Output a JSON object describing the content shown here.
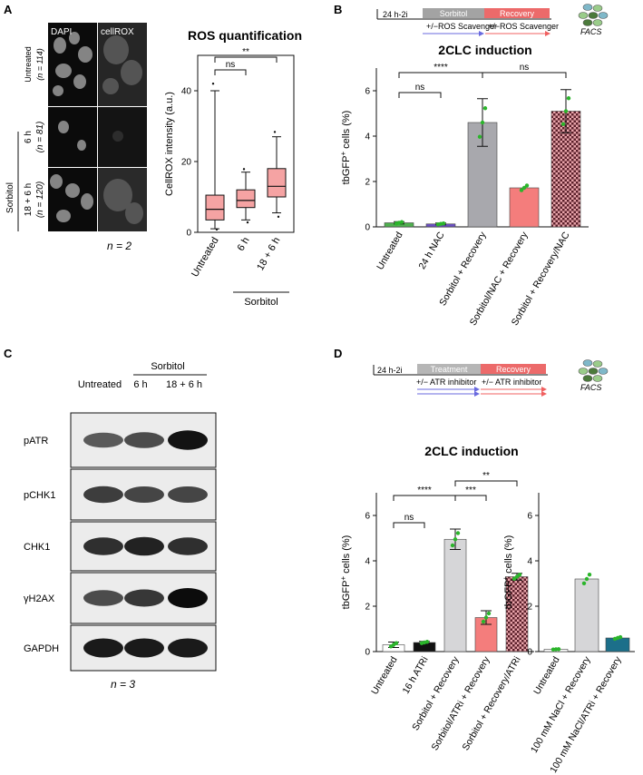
{
  "panel_labels": {
    "a": "A",
    "b": "B",
    "c": "C",
    "d": "D"
  },
  "panelA": {
    "stain1": "DAPI",
    "stain2": "cellROX",
    "row_untreated": "Untreated",
    "row_untreated_n": "(n = 114)",
    "sorbitol_label": "Sorbitol",
    "row_6h": "6 h",
    "row_6h_n": "(n = 81)",
    "row_18h": "18 + 6 h",
    "row_18h_n": "(n = 120)",
    "n_note": "n = 2",
    "chart_data": {
      "type": "box",
      "title": "ROS quantification",
      "ylabel": "CellROX intensity (a.u.)",
      "ylim": [
        0,
        50
      ],
      "yticks": [
        "0",
        "20",
        "40"
      ],
      "categories": [
        "Untreated",
        "6 h",
        "18 + 6 h"
      ],
      "group_label": "Sorbitol",
      "boxes": [
        {
          "min": 1,
          "q1": 3.5,
          "median": 6.5,
          "q3": 10.5,
          "max": 40
        },
        {
          "min": 3.5,
          "q1": 7,
          "median": 9,
          "q3": 12,
          "max": 17
        },
        {
          "min": 5.5,
          "q1": 10,
          "median": 13,
          "q3": 18,
          "max": 27
        }
      ],
      "sig": [
        {
          "label": "ns"
        },
        {
          "label": "**"
        }
      ]
    }
  },
  "panelB": {
    "timeline": {
      "seg1": "24 h-2i",
      "seg2": "Sorbitol",
      "seg3": "Recovery",
      "arrow1": "+/−ROS Scavenger",
      "arrow2": "+/−ROS Scavenger",
      "facs": "FACS"
    },
    "chart_data": {
      "type": "bar",
      "title": "2CLC induction",
      "ylabel_main": "tbGFP",
      "ylabel_sup": "+",
      "ylabel_rest": " cells (%)",
      "ylim": [
        0,
        7
      ],
      "yticks": [
        "0",
        "2",
        "4",
        "6"
      ],
      "categories": [
        "Untreated",
        "24 h NAC",
        "Sorbitol + Recovery",
        "Sorbitol/NAC + Recovery",
        "Sorbitol + Recovery/NAC"
      ],
      "values": [
        0.18,
        0.13,
        4.6,
        1.72,
        5.1
      ],
      "errors": [
        0.05,
        0.04,
        1.05,
        0.0,
        0.95
      ],
      "colors": [
        "#4fb04f",
        "#6a4fc0",
        "#a8a8ad",
        "#f47d7c",
        "#9b3b4b"
      ],
      "sig": [
        {
          "label": "****"
        },
        {
          "label": "ns"
        },
        {
          "label": "ns"
        }
      ]
    }
  },
  "panelC": {
    "sorbitol_label": "Sorbitol",
    "lanes": [
      "Untreated",
      "6 h",
      "18 + 6 h"
    ],
    "rows": [
      "pATR",
      "pCHK1",
      "CHK1",
      "γH2AX",
      "GAPDH"
    ],
    "n_note": "n = 3"
  },
  "panelD": {
    "timeline": {
      "seg1": "24 h-2i",
      "seg2": "Treatment",
      "seg3": "Recovery",
      "arrow1": "+/− ATR inhibitor",
      "arrow2": "+/− ATR inhibitor",
      "facs": "FACS"
    },
    "title": "2CLC induction",
    "chart_data": [
      {
        "type": "bar",
        "ylabel_main": "tbGFP",
        "ylabel_sup": "+",
        "ylabel_rest": " cells (%)",
        "ylim": [
          0,
          7
        ],
        "yticks": [
          "0",
          "2",
          "4",
          "6"
        ],
        "categories": [
          "Untreated",
          "16 h ATRi",
          "Sorbitol + Recovery",
          "Sorbitol/ATRi + Recovery",
          "Sorbitol + Recovery/ATRi"
        ],
        "values": [
          0.3,
          0.4,
          4.95,
          1.5,
          3.3
        ],
        "errors": [
          0.12,
          0.05,
          0.45,
          0.3,
          0.15
        ],
        "colors": [
          "#ffffff",
          "#111111",
          "#d6d6d8",
          "#f47d7c",
          "#9b3b4b"
        ],
        "sig": [
          {
            "label": "ns"
          },
          {
            "label": "****"
          },
          {
            "label": "***"
          },
          {
            "label": "**"
          }
        ]
      },
      {
        "type": "bar",
        "ylabel_main": "tbGFP",
        "ylabel_sup": "+",
        "ylabel_rest": " cells (%)",
        "ylim": [
          0,
          7
        ],
        "yticks": [
          "0",
          "2",
          "4",
          "6"
        ],
        "categories": [
          "Untreated",
          "100 mM NaCl + Recovery",
          "100 mM NaCl/ATRi + Recovery"
        ],
        "values": [
          0.1,
          3.2,
          0.6
        ],
        "errors": [
          0,
          0,
          0
        ],
        "colors": [
          "#ffffff",
          "#d6d6d8",
          "#1c6f8a"
        ]
      }
    ]
  }
}
